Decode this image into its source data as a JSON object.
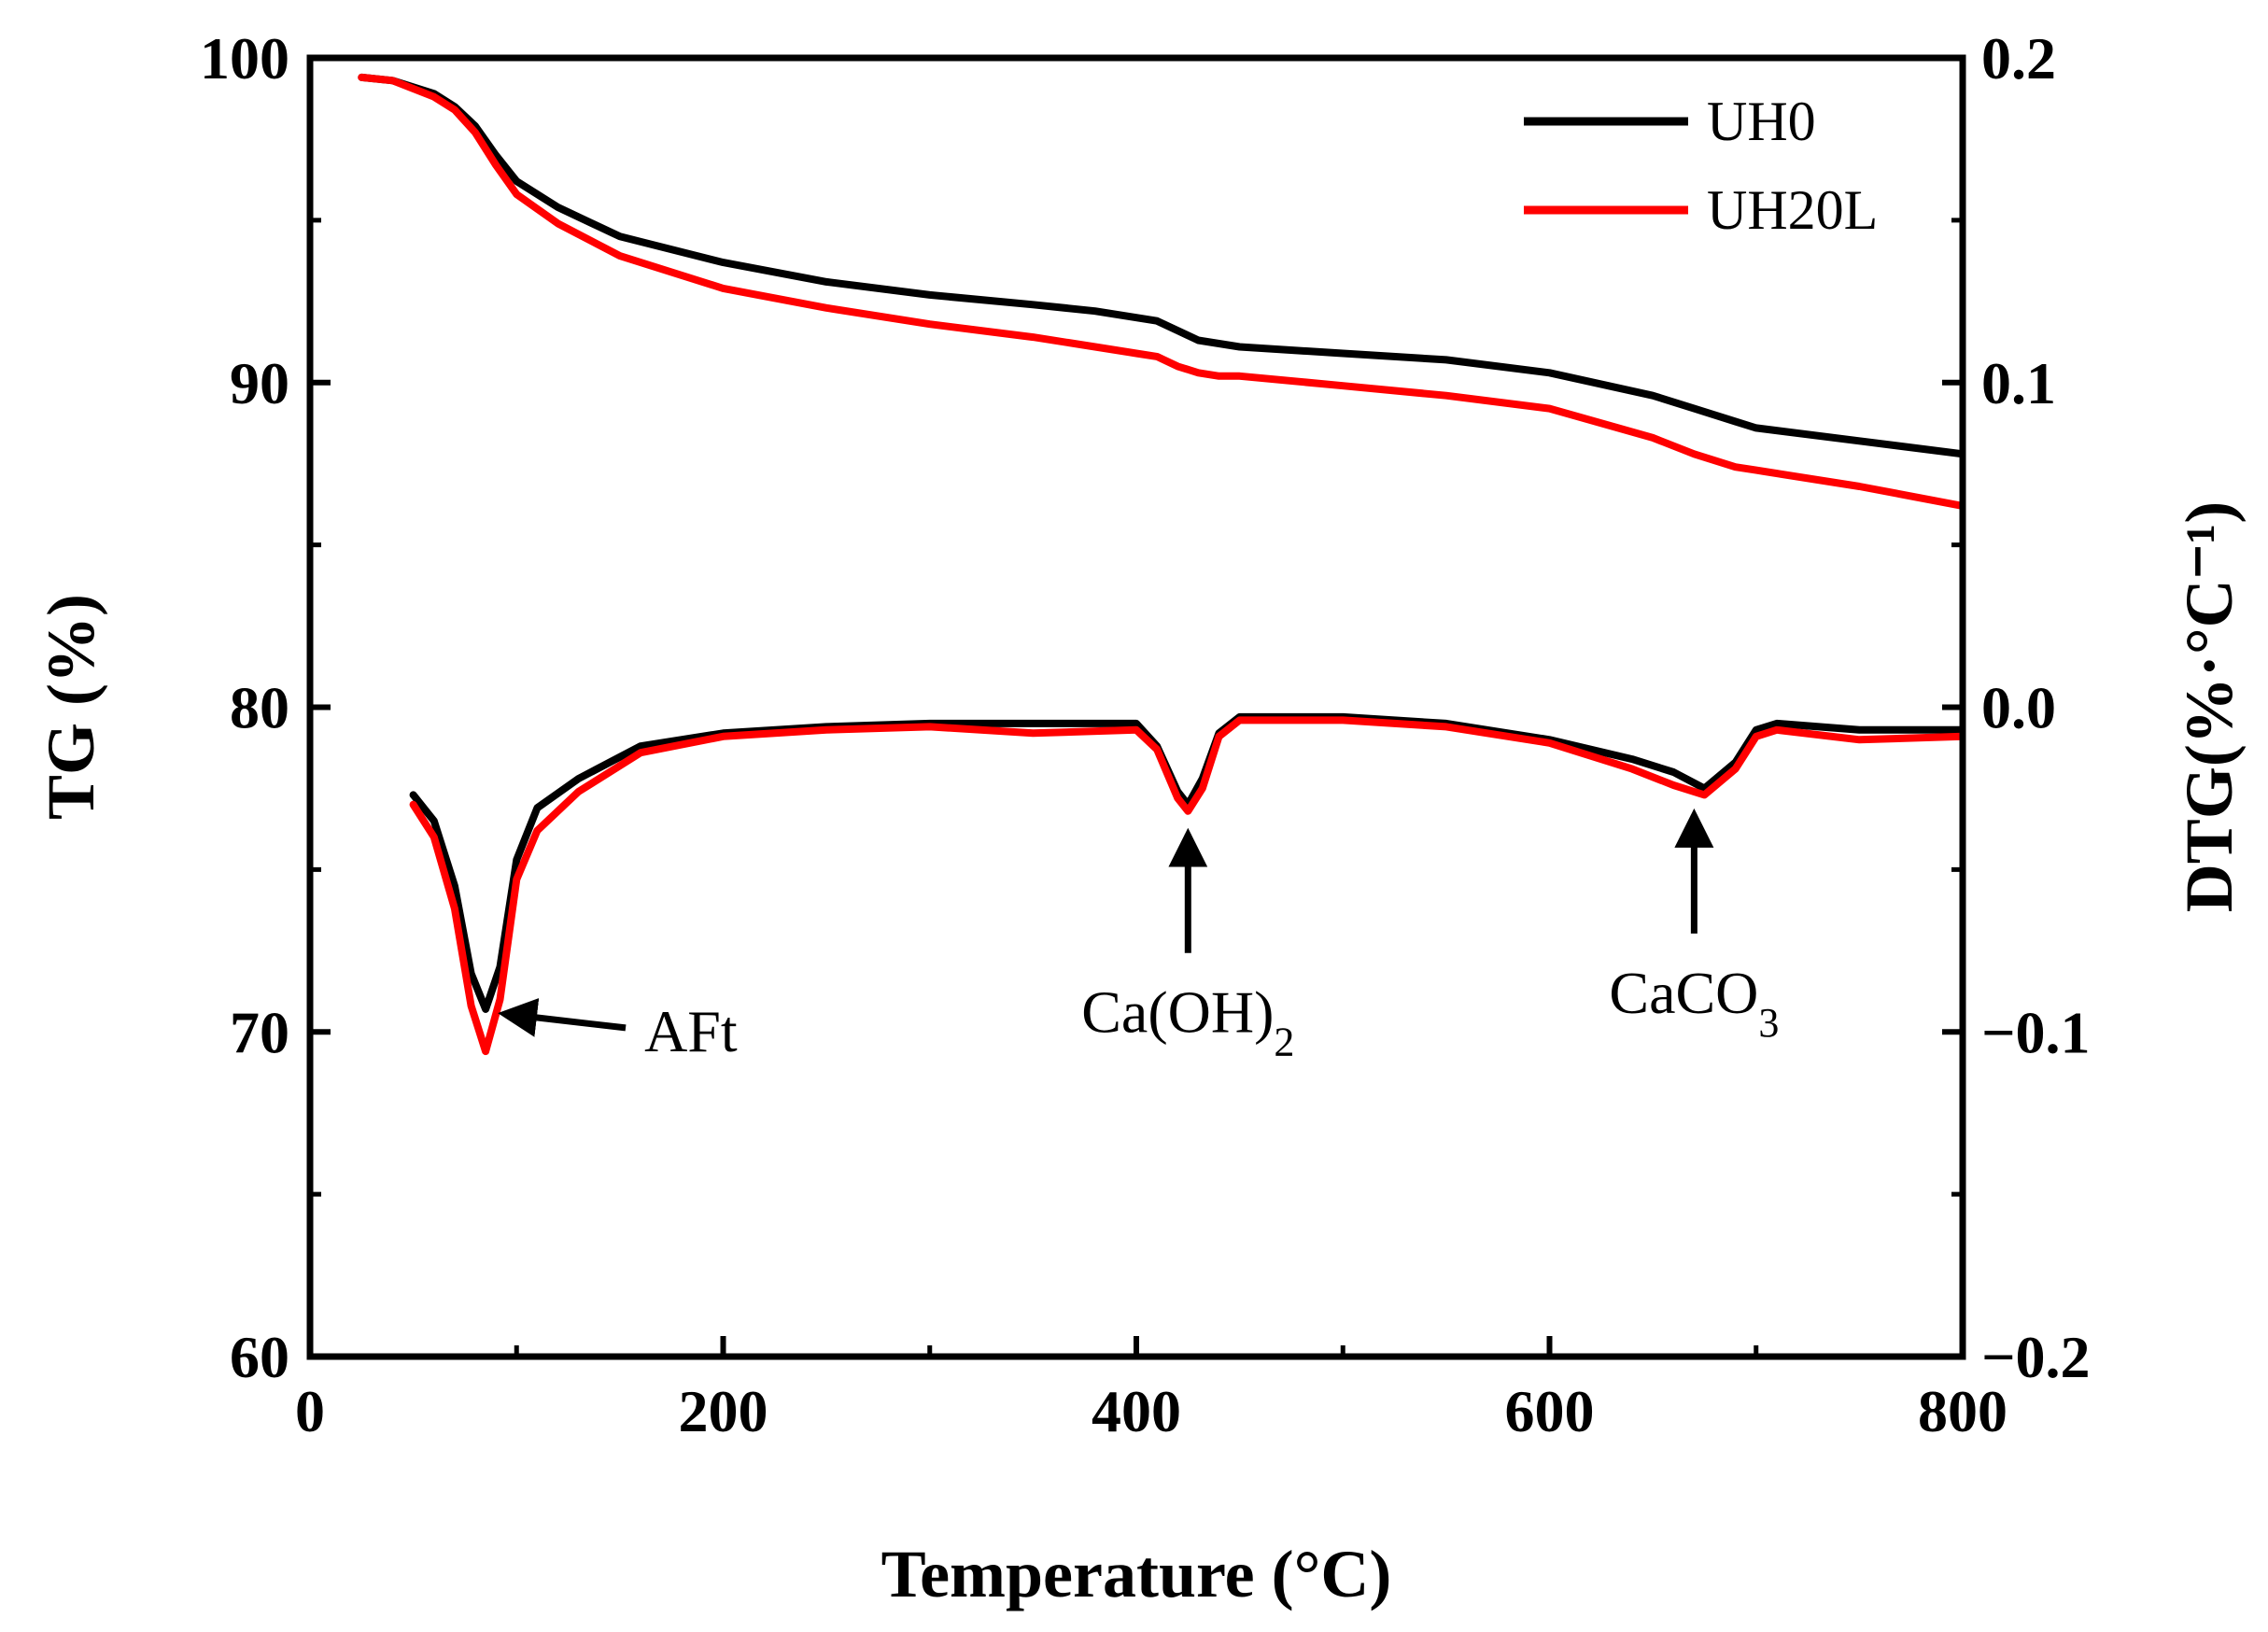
{
  "chart_data": {
    "type": "line",
    "title": "",
    "xlabel": "Temperature (°C)",
    "ylabel_left": "TG (%)",
    "ylabel_right": "DTG(%·°C⁻¹)",
    "xlim": [
      0,
      800
    ],
    "ylim_left": [
      60,
      100
    ],
    "ylim_right": [
      -0.2,
      0.2
    ],
    "xticks": [
      "0",
      "200",
      "400",
      "600",
      "800"
    ],
    "yticks_left": [
      "60",
      "70",
      "80",
      "90",
      "100"
    ],
    "yticks_right": [
      "−0.2",
      "−0.1",
      "0.0",
      "0.1",
      "0.2"
    ],
    "legend": {
      "placement": "top-right",
      "entries": [
        "UH0",
        "UH20L"
      ]
    },
    "colors": {
      "UH0": "#000000",
      "UH20L": "#ff0000"
    },
    "series": [
      {
        "name": "UH0",
        "axis": "left",
        "kind": "TG",
        "x": [
          25,
          40,
          60,
          70,
          80,
          90,
          100,
          120,
          150,
          200,
          250,
          300,
          350,
          380,
          400,
          410,
          420,
          430,
          440,
          450,
          500,
          550,
          600,
          650,
          670,
          690,
          700,
          750,
          800
        ],
        "y": [
          99.4,
          99.3,
          98.9,
          98.5,
          97.9,
          97.0,
          96.2,
          95.4,
          94.5,
          93.7,
          93.1,
          92.7,
          92.4,
          92.2,
          92.0,
          91.9,
          91.6,
          91.3,
          91.2,
          91.1,
          90.9,
          90.7,
          90.3,
          89.6,
          89.2,
          88.8,
          88.6,
          88.2,
          87.8
        ]
      },
      {
        "name": "UH20L",
        "axis": "left",
        "kind": "TG",
        "x": [
          25,
          40,
          60,
          70,
          80,
          90,
          100,
          120,
          150,
          200,
          250,
          300,
          350,
          380,
          400,
          410,
          420,
          430,
          440,
          450,
          500,
          550,
          600,
          650,
          670,
          690,
          700,
          750,
          800
        ],
        "y": [
          99.4,
          99.3,
          98.8,
          98.4,
          97.7,
          96.7,
          95.8,
          94.9,
          93.9,
          92.9,
          92.3,
          91.8,
          91.4,
          91.1,
          90.9,
          90.8,
          90.5,
          90.3,
          90.2,
          90.2,
          89.9,
          89.6,
          89.2,
          88.3,
          87.8,
          87.4,
          87.3,
          86.8,
          86.2
        ]
      },
      {
        "name": "UH0",
        "axis": "right",
        "kind": "DTG",
        "x": [
          50,
          60,
          70,
          78,
          85,
          92,
          100,
          110,
          130,
          160,
          200,
          250,
          300,
          350,
          400,
          410,
          420,
          425,
          432,
          440,
          450,
          500,
          550,
          600,
          640,
          660,
          675,
          690,
          700,
          710,
          750,
          800
        ],
        "y": [
          -0.027,
          -0.035,
          -0.055,
          -0.082,
          -0.093,
          -0.08,
          -0.047,
          -0.031,
          -0.022,
          -0.012,
          -0.008,
          -0.006,
          -0.005,
          -0.005,
          -0.005,
          -0.012,
          -0.026,
          -0.03,
          -0.022,
          -0.008,
          -0.003,
          -0.003,
          -0.005,
          -0.01,
          -0.016,
          -0.02,
          -0.025,
          -0.017,
          -0.007,
          -0.005,
          -0.007,
          -0.007
        ]
      },
      {
        "name": "UH20L",
        "axis": "right",
        "kind": "DTG",
        "x": [
          50,
          60,
          70,
          78,
          85,
          92,
          100,
          110,
          130,
          160,
          200,
          250,
          300,
          350,
          400,
          410,
          420,
          425,
          432,
          440,
          450,
          500,
          550,
          600,
          640,
          660,
          675,
          690,
          700,
          710,
          750,
          800
        ],
        "y": [
          -0.03,
          -0.04,
          -0.062,
          -0.092,
          -0.106,
          -0.09,
          -0.053,
          -0.038,
          -0.026,
          -0.014,
          -0.009,
          -0.007,
          -0.006,
          -0.008,
          -0.007,
          -0.013,
          -0.028,
          -0.032,
          -0.025,
          -0.009,
          -0.004,
          -0.004,
          -0.006,
          -0.011,
          -0.019,
          -0.024,
          -0.027,
          -0.019,
          -0.009,
          -0.007,
          -0.01,
          -0.009
        ]
      }
    ],
    "annotations": [
      {
        "label": "AFt",
        "subscript": "",
        "x": 85,
        "y_right": -0.093,
        "arrow": "left"
      },
      {
        "label": "Ca(OH)",
        "subscript": "2",
        "x": 425,
        "y_right": -0.034,
        "arrow": "up"
      },
      {
        "label": "CaCO",
        "subscript": "3",
        "x": 670,
        "y_right": -0.028,
        "arrow": "up"
      }
    ]
  }
}
